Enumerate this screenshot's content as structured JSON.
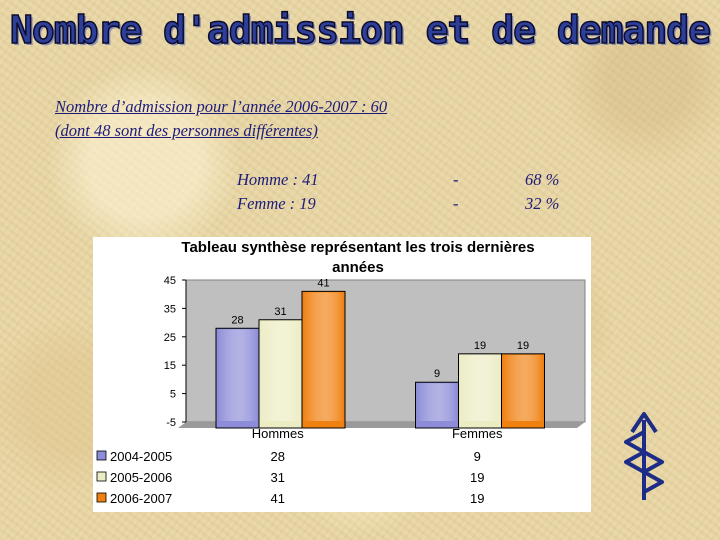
{
  "page": {
    "title": "Nombre d'admission et de demande",
    "line1": "Nombre d’admission pour l’année 2006-2007 :  60",
    "line2": "(dont 48 sont des personnes différentes)"
  },
  "stats": [
    {
      "label": "Homme :  41",
      "dash": "-",
      "pct": "68 %"
    },
    {
      "label": "Femme :  19",
      "dash": "-",
      "pct": "32 %"
    }
  ],
  "colors": {
    "text": "#1c1c7a",
    "title": "#2e3f9a",
    "plot_bg": "#bfbfbf",
    "series": [
      "#8c8cd8",
      "#ececc4",
      "#f08010"
    ]
  },
  "chart_data": {
    "type": "bar",
    "title_line1": "Tableau synthèse représentant les trois dernières",
    "title_line2": "années",
    "categories": [
      "Hommes",
      "Femmes"
    ],
    "series": [
      {
        "name": "2004-2005",
        "values": [
          28,
          9
        ],
        "labels": [
          "28",
          "9"
        ]
      },
      {
        "name": "2005-2006",
        "values": [
          31,
          19
        ],
        "labels": [
          "31",
          "19"
        ]
      },
      {
        "name": "2006-2007",
        "values": [
          41,
          19
        ],
        "labels": [
          "41",
          "19"
        ]
      }
    ],
    "ylim": [
      -5,
      45
    ],
    "yticks": [
      45,
      35,
      25,
      15,
      5,
      -5
    ],
    "grid": false,
    "legend": "data-table-below"
  }
}
